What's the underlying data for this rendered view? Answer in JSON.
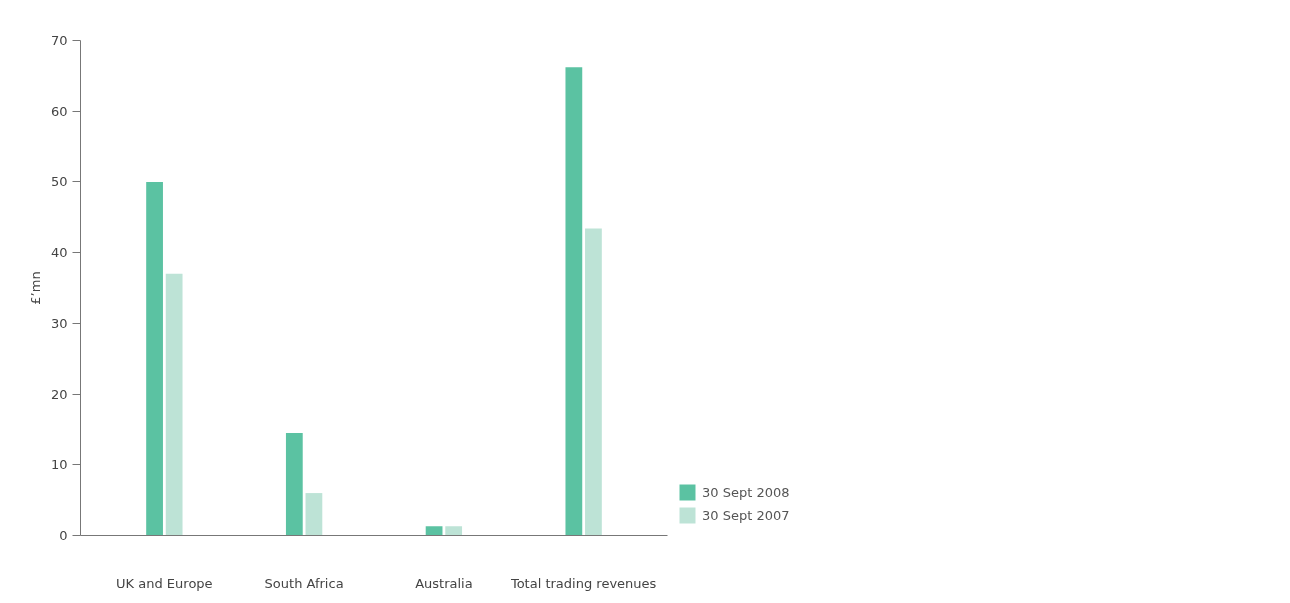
{
  "chart_data": {
    "type": "bar",
    "ylabel": "£’mn",
    "categories": [
      "UK and Europe",
      "South Africa",
      "Australia",
      "Total trading revenues"
    ],
    "series": [
      {
        "name": "30 Sept 2008",
        "color": "#5bc2a2",
        "values": [
          50,
          14.5,
          1.3,
          66.2
        ]
      },
      {
        "name": "30 Sept 2007",
        "color": "#bde3d6",
        "values": [
          37,
          6,
          1.3,
          43.4
        ]
      }
    ],
    "ylim": [
      0,
      70
    ],
    "yticks": [
      0,
      10,
      20,
      30,
      40,
      50,
      60,
      70
    ],
    "grid": false,
    "legend": "right"
  }
}
